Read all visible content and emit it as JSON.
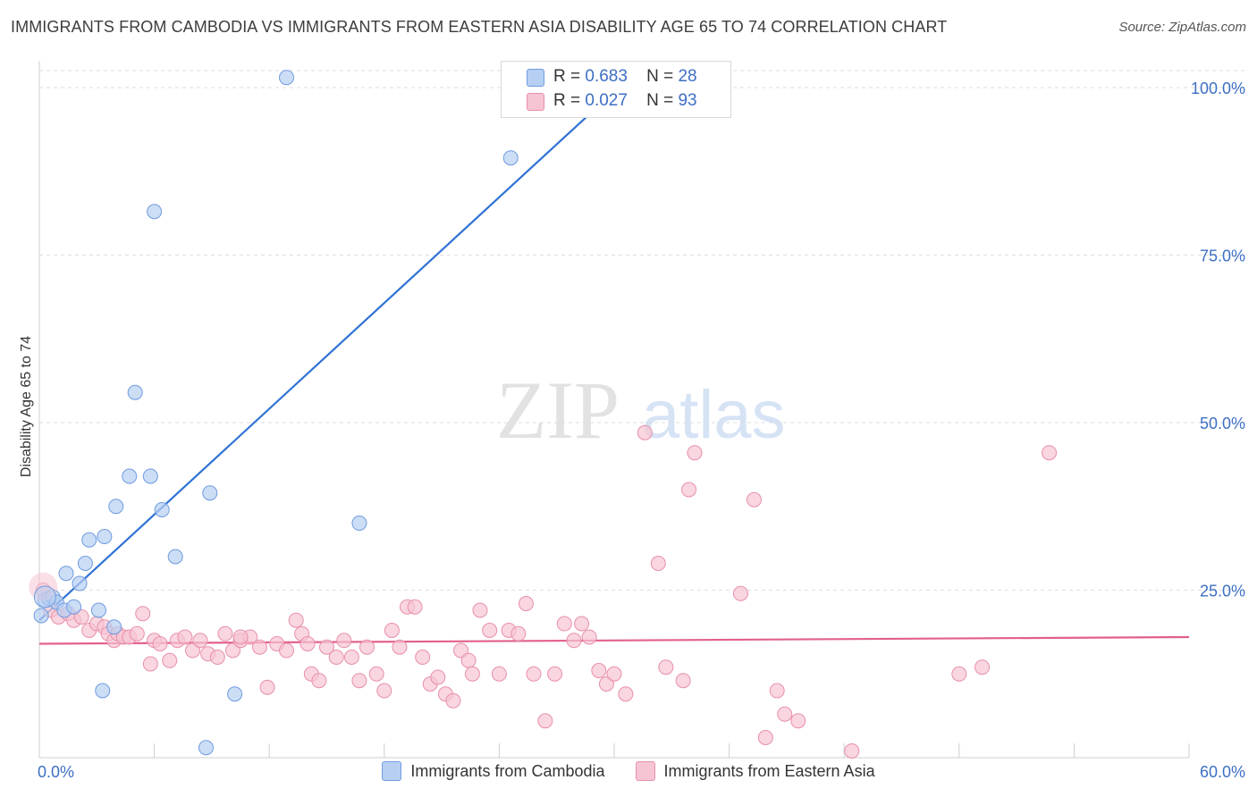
{
  "title": "IMMIGRANTS FROM CAMBODIA VS IMMIGRANTS FROM EASTERN ASIA DISABILITY AGE 65 TO 74 CORRELATION CHART",
  "source": "Source: ZipAtlas.com",
  "watermark": {
    "zip": "ZIP",
    "atlas": "atlas"
  },
  "legend_top": [
    {
      "r_label": "R =",
      "r_value": "0.683",
      "n_label": "N =",
      "n_value": "28"
    },
    {
      "r_label": "R =",
      "r_value": "0.027",
      "n_label": "N =",
      "n_value": "93"
    }
  ],
  "colors": {
    "blue_fill": "#b6cff2",
    "blue_stroke": "#6f9ce0",
    "blue_line": "#2f72d4",
    "pink_fill": "#f6c4d3",
    "pink_stroke": "#e890aa",
    "pink_line": "#e2608c",
    "grid": "#dedede",
    "axis_text": "#3d6fc4"
  },
  "chart_data": {
    "type": "scatter",
    "title": "IMMIGRANTS FROM CAMBODIA VS IMMIGRANTS FROM EASTERN ASIA DISABILITY AGE 65 TO 74 CORRELATION CHART",
    "xlabel": "",
    "ylabel": "Disability Age 65 to 74",
    "xlim": [
      0,
      60
    ],
    "ylim": [
      0,
      100
    ],
    "x_tick_labels": [
      "0.0%",
      "60.0%"
    ],
    "y_ticks": [
      25,
      50,
      75,
      100
    ],
    "y_tick_labels": [
      "25.0%",
      "50.0%",
      "75.0%",
      "100.0%"
    ],
    "grid": true,
    "legend_position": "bottom",
    "series": [
      {
        "name": "Immigrants from Cambodia",
        "color": "blue",
        "r": 0.683,
        "n": 28,
        "trend": {
          "x0": 0,
          "y0": 20.5,
          "x1": 30.6,
          "y1": 101
        },
        "points": [
          [
            0.1,
            21.2
          ],
          [
            0.3,
            23.5
          ],
          [
            0.5,
            23.8
          ],
          [
            0.7,
            24.0
          ],
          [
            0.9,
            23.2
          ],
          [
            1.3,
            22.0
          ],
          [
            1.4,
            27.5
          ],
          [
            1.8,
            22.5
          ],
          [
            2.1,
            26.0
          ],
          [
            2.4,
            29.0
          ],
          [
            2.6,
            32.5
          ],
          [
            3.1,
            22.0
          ],
          [
            3.4,
            33.0
          ],
          [
            3.3,
            10.0
          ],
          [
            3.9,
            19.5
          ],
          [
            4.0,
            37.5
          ],
          [
            4.7,
            42.0
          ],
          [
            5.0,
            54.5
          ],
          [
            5.8,
            42.0
          ],
          [
            6.0,
            81.5
          ],
          [
            6.4,
            37.0
          ],
          [
            7.1,
            30.0
          ],
          [
            8.9,
            39.5
          ],
          [
            10.2,
            9.5
          ],
          [
            8.7,
            1.5
          ],
          [
            12.9,
            101.5
          ],
          [
            16.7,
            35.0
          ],
          [
            24.6,
            89.5
          ]
        ]
      },
      {
        "name": "Immigrants from Eastern Asia",
        "color": "pink",
        "r": 0.027,
        "n": 93,
        "trend": {
          "x0": 0,
          "y0": 17.0,
          "x1": 60,
          "y1": 18.0
        },
        "points": [
          [
            0.2,
            25.0
          ],
          [
            0.6,
            22.0
          ],
          [
            1.0,
            21.0
          ],
          [
            1.5,
            21.5
          ],
          [
            1.8,
            20.5
          ],
          [
            2.2,
            21.0
          ],
          [
            2.6,
            19.0
          ],
          [
            3.0,
            20.0
          ],
          [
            3.4,
            19.5
          ],
          [
            3.6,
            18.5
          ],
          [
            3.9,
            17.5
          ],
          [
            4.1,
            18.5
          ],
          [
            4.4,
            18.0
          ],
          [
            4.7,
            18.0
          ],
          [
            5.1,
            18.5
          ],
          [
            5.4,
            21.5
          ],
          [
            6.0,
            17.5
          ],
          [
            6.3,
            17.0
          ],
          [
            6.8,
            14.5
          ],
          [
            7.2,
            17.5
          ],
          [
            7.6,
            18.0
          ],
          [
            8.0,
            16.0
          ],
          [
            8.4,
            17.5
          ],
          [
            8.8,
            15.5
          ],
          [
            9.3,
            15.0
          ],
          [
            9.7,
            18.5
          ],
          [
            10.1,
            16.0
          ],
          [
            10.5,
            17.5
          ],
          [
            11.0,
            18.0
          ],
          [
            11.5,
            16.5
          ],
          [
            11.9,
            10.5
          ],
          [
            12.4,
            17.0
          ],
          [
            12.9,
            16.0
          ],
          [
            13.4,
            20.5
          ],
          [
            13.7,
            18.5
          ],
          [
            14.2,
            12.5
          ],
          [
            14.6,
            11.5
          ],
          [
            15.0,
            16.5
          ],
          [
            15.5,
            15.0
          ],
          [
            15.9,
            17.5
          ],
          [
            16.3,
            15.0
          ],
          [
            16.7,
            11.5
          ],
          [
            17.1,
            16.5
          ],
          [
            17.6,
            12.5
          ],
          [
            18.0,
            10.0
          ],
          [
            18.4,
            19.0
          ],
          [
            18.8,
            16.5
          ],
          [
            19.2,
            22.5
          ],
          [
            19.6,
            22.5
          ],
          [
            20.0,
            15.0
          ],
          [
            20.4,
            11.0
          ],
          [
            20.8,
            12.0
          ],
          [
            21.2,
            9.5
          ],
          [
            21.6,
            8.5
          ],
          [
            22.0,
            16.0
          ],
          [
            22.4,
            14.5
          ],
          [
            22.6,
            12.5
          ],
          [
            23.0,
            22.0
          ],
          [
            23.5,
            19.0
          ],
          [
            24.0,
            12.5
          ],
          [
            24.5,
            19.0
          ],
          [
            25.0,
            18.5
          ],
          [
            25.4,
            23.0
          ],
          [
            25.8,
            12.5
          ],
          [
            26.4,
            5.5
          ],
          [
            26.9,
            12.5
          ],
          [
            27.4,
            20.0
          ],
          [
            27.9,
            17.5
          ],
          [
            28.3,
            20.0
          ],
          [
            28.7,
            18.0
          ],
          [
            29.2,
            13.0
          ],
          [
            29.6,
            11.0
          ],
          [
            30.0,
            12.5
          ],
          [
            30.6,
            9.5
          ],
          [
            31.6,
            48.5
          ],
          [
            32.3,
            29.0
          ],
          [
            32.7,
            13.5
          ],
          [
            33.6,
            11.5
          ],
          [
            33.9,
            40.0
          ],
          [
            34.2,
            45.5
          ],
          [
            36.6,
            24.5
          ],
          [
            37.3,
            38.5
          ],
          [
            37.9,
            3.0
          ],
          [
            38.5,
            10.0
          ],
          [
            38.9,
            6.5
          ],
          [
            39.6,
            5.5
          ],
          [
            42.4,
            1.0
          ],
          [
            48.0,
            12.5
          ],
          [
            49.2,
            13.5
          ],
          [
            52.7,
            45.5
          ],
          [
            10.5,
            18.0
          ],
          [
            14.0,
            17.0
          ],
          [
            5.8,
            14.0
          ]
        ]
      }
    ]
  },
  "bottom_legend": [
    "Immigrants from Cambodia",
    "Immigrants from Eastern Asia"
  ]
}
